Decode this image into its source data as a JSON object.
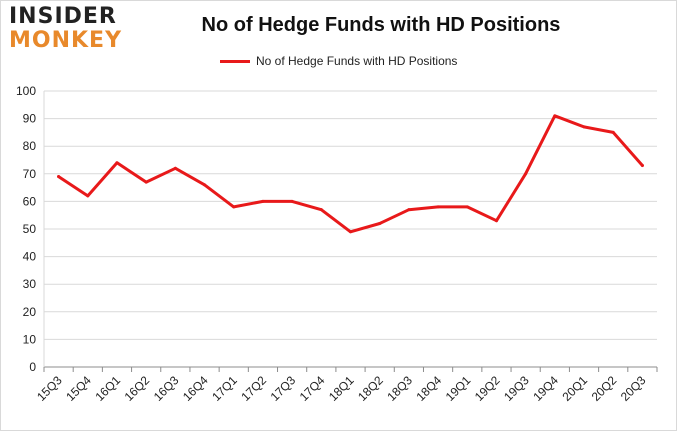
{
  "brand": {
    "line1": "INSIDER",
    "line2": "MONKEY"
  },
  "chart_data": {
    "type": "line",
    "title": "No of Hedge Funds with HD Positions",
    "xlabel": "",
    "ylabel": "",
    "ylim": [
      0,
      100
    ],
    "yticks": [
      0,
      10,
      20,
      30,
      40,
      50,
      60,
      70,
      80,
      90,
      100
    ],
    "grid": true,
    "legend_position": "top-center",
    "categories": [
      "15Q3",
      "15Q4",
      "16Q1",
      "16Q2",
      "16Q3",
      "16Q4",
      "17Q1",
      "17Q2",
      "17Q3",
      "17Q4",
      "18Q1",
      "18Q2",
      "18Q3",
      "18Q4",
      "19Q1",
      "19Q2",
      "19Q3",
      "19Q4",
      "20Q1",
      "20Q2",
      "20Q3"
    ],
    "series": [
      {
        "name": "No of Hedge Funds with HD Positions",
        "color": "#e8191a",
        "values": [
          69,
          62,
          74,
          67,
          72,
          66,
          58,
          60,
          60,
          57,
          49,
          52,
          57,
          58,
          58,
          53,
          70,
          91,
          87,
          85,
          73
        ]
      }
    ]
  }
}
